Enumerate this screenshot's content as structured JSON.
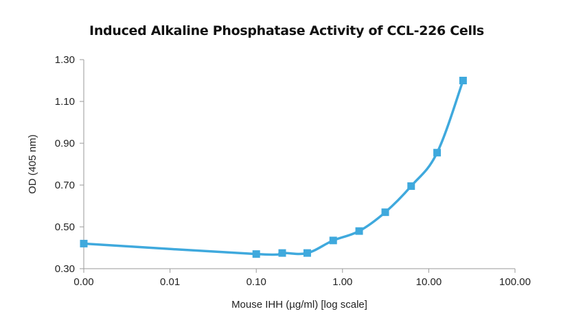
{
  "chart_data": {
    "type": "line",
    "title": "Induced Alkaline Phosphatase Activity of CCL-226 Cells",
    "xlabel": "Mouse IHH (µg/ml) [log scale]",
    "ylabel": "OD (405 nm)",
    "x_scale": "log",
    "xlim": [
      0.001,
      100
    ],
    "ylim": [
      0.3,
      1.3
    ],
    "x_tick_values": [
      0.001,
      0.01,
      0.1,
      1,
      10,
      100
    ],
    "x_tick_labels": [
      "0.00",
      "0.01",
      "0.10",
      "1.00",
      "10.00",
      "100.00"
    ],
    "y_tick_values": [
      0.3,
      0.5,
      0.7,
      0.9,
      1.1,
      1.3
    ],
    "y_tick_labels": [
      "0.30",
      "0.50",
      "0.70",
      "0.90",
      "1.10",
      "1.30"
    ],
    "grid": false,
    "series": [
      {
        "color": "#3fa9dd",
        "marker": "square",
        "x": [
          0.001,
          0.1,
          0.2,
          0.39,
          0.78,
          1.56,
          3.13,
          6.25,
          12.5,
          25
        ],
        "y": [
          0.42,
          0.37,
          0.375,
          0.375,
          0.435,
          0.48,
          0.57,
          0.695,
          0.855,
          1.2
        ]
      }
    ]
  }
}
